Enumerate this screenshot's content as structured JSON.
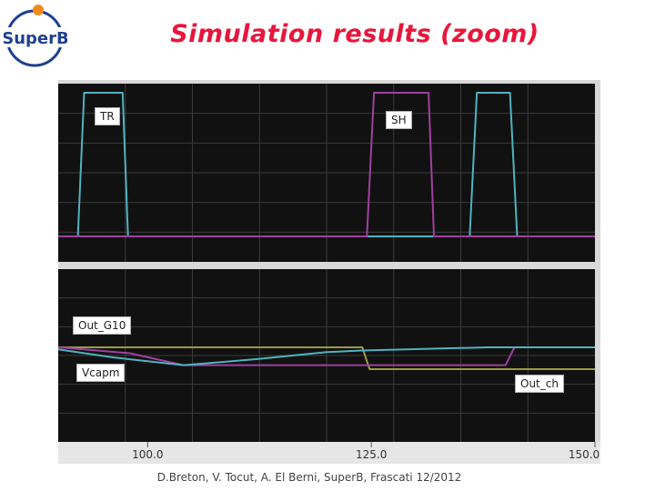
{
  "header": {
    "title": "Simulation results (zoom)",
    "logo_text": "SuperB"
  },
  "chart_data": {
    "type": "line",
    "x_ticks": [
      "100.0",
      "125.0",
      "150.0"
    ],
    "xlim": [
      90,
      150
    ],
    "panels": [
      {
        "name": "top",
        "labels": [
          "TR",
          "SH"
        ],
        "series": [
          {
            "name": "TR",
            "color": "#4fb3bf",
            "points": [
              [
                90,
                0
              ],
              [
                92.2,
                0
              ],
              [
                92.9,
                1
              ],
              [
                97.2,
                1
              ],
              [
                97.8,
                0
              ],
              [
                136.0,
                0
              ],
              [
                136.8,
                1
              ],
              [
                140.5,
                1
              ],
              [
                141.3,
                0
              ],
              [
                150,
                0
              ]
            ]
          },
          {
            "name": "SH",
            "color": "#a040a0",
            "points": [
              [
                90,
                0
              ],
              [
                124.5,
                0
              ],
              [
                125.3,
                1
              ],
              [
                131.4,
                1
              ],
              [
                132.0,
                0
              ],
              [
                150,
                0
              ]
            ]
          }
        ]
      },
      {
        "name": "bottom",
        "labels": [
          "Out_G10",
          "Vcapm",
          "Out_ch"
        ],
        "series": [
          {
            "name": "Out_G10",
            "color": "#9a9a4a",
            "points": [
              [
                90,
                0
              ],
              [
                124.0,
                0
              ],
              [
                124.8,
                -0.55
              ],
              [
                150,
                -0.55
              ]
            ]
          },
          {
            "name": "Vcapm",
            "color": "#a040a0",
            "points": [
              [
                90,
                0
              ],
              [
                98,
                -0.15
              ],
              [
                104,
                -0.45
              ],
              [
                110,
                -0.45
              ],
              [
                125,
                -0.45
              ],
              [
                140,
                -0.45
              ],
              [
                141,
                0
              ],
              [
                150,
                0
              ]
            ]
          },
          {
            "name": "Out_ch",
            "color": "#4fb3bf",
            "points": [
              [
                90,
                -0.05
              ],
              [
                96,
                -0.25
              ],
              [
                104,
                -0.45
              ],
              [
                112,
                -0.3
              ],
              [
                120,
                -0.12
              ],
              [
                124,
                -0.08
              ],
              [
                138,
                0
              ],
              [
                150,
                0
              ]
            ]
          }
        ]
      }
    ]
  },
  "footer": {
    "credit": "D.Breton, V. Tocut, A. El Berni, SuperB, Frascati 12/2012"
  },
  "colors": {
    "scope_background": "#111111",
    "grid": "#3a3a3a",
    "axis_strip": "#e6e6e6",
    "title": "#e8163c"
  }
}
